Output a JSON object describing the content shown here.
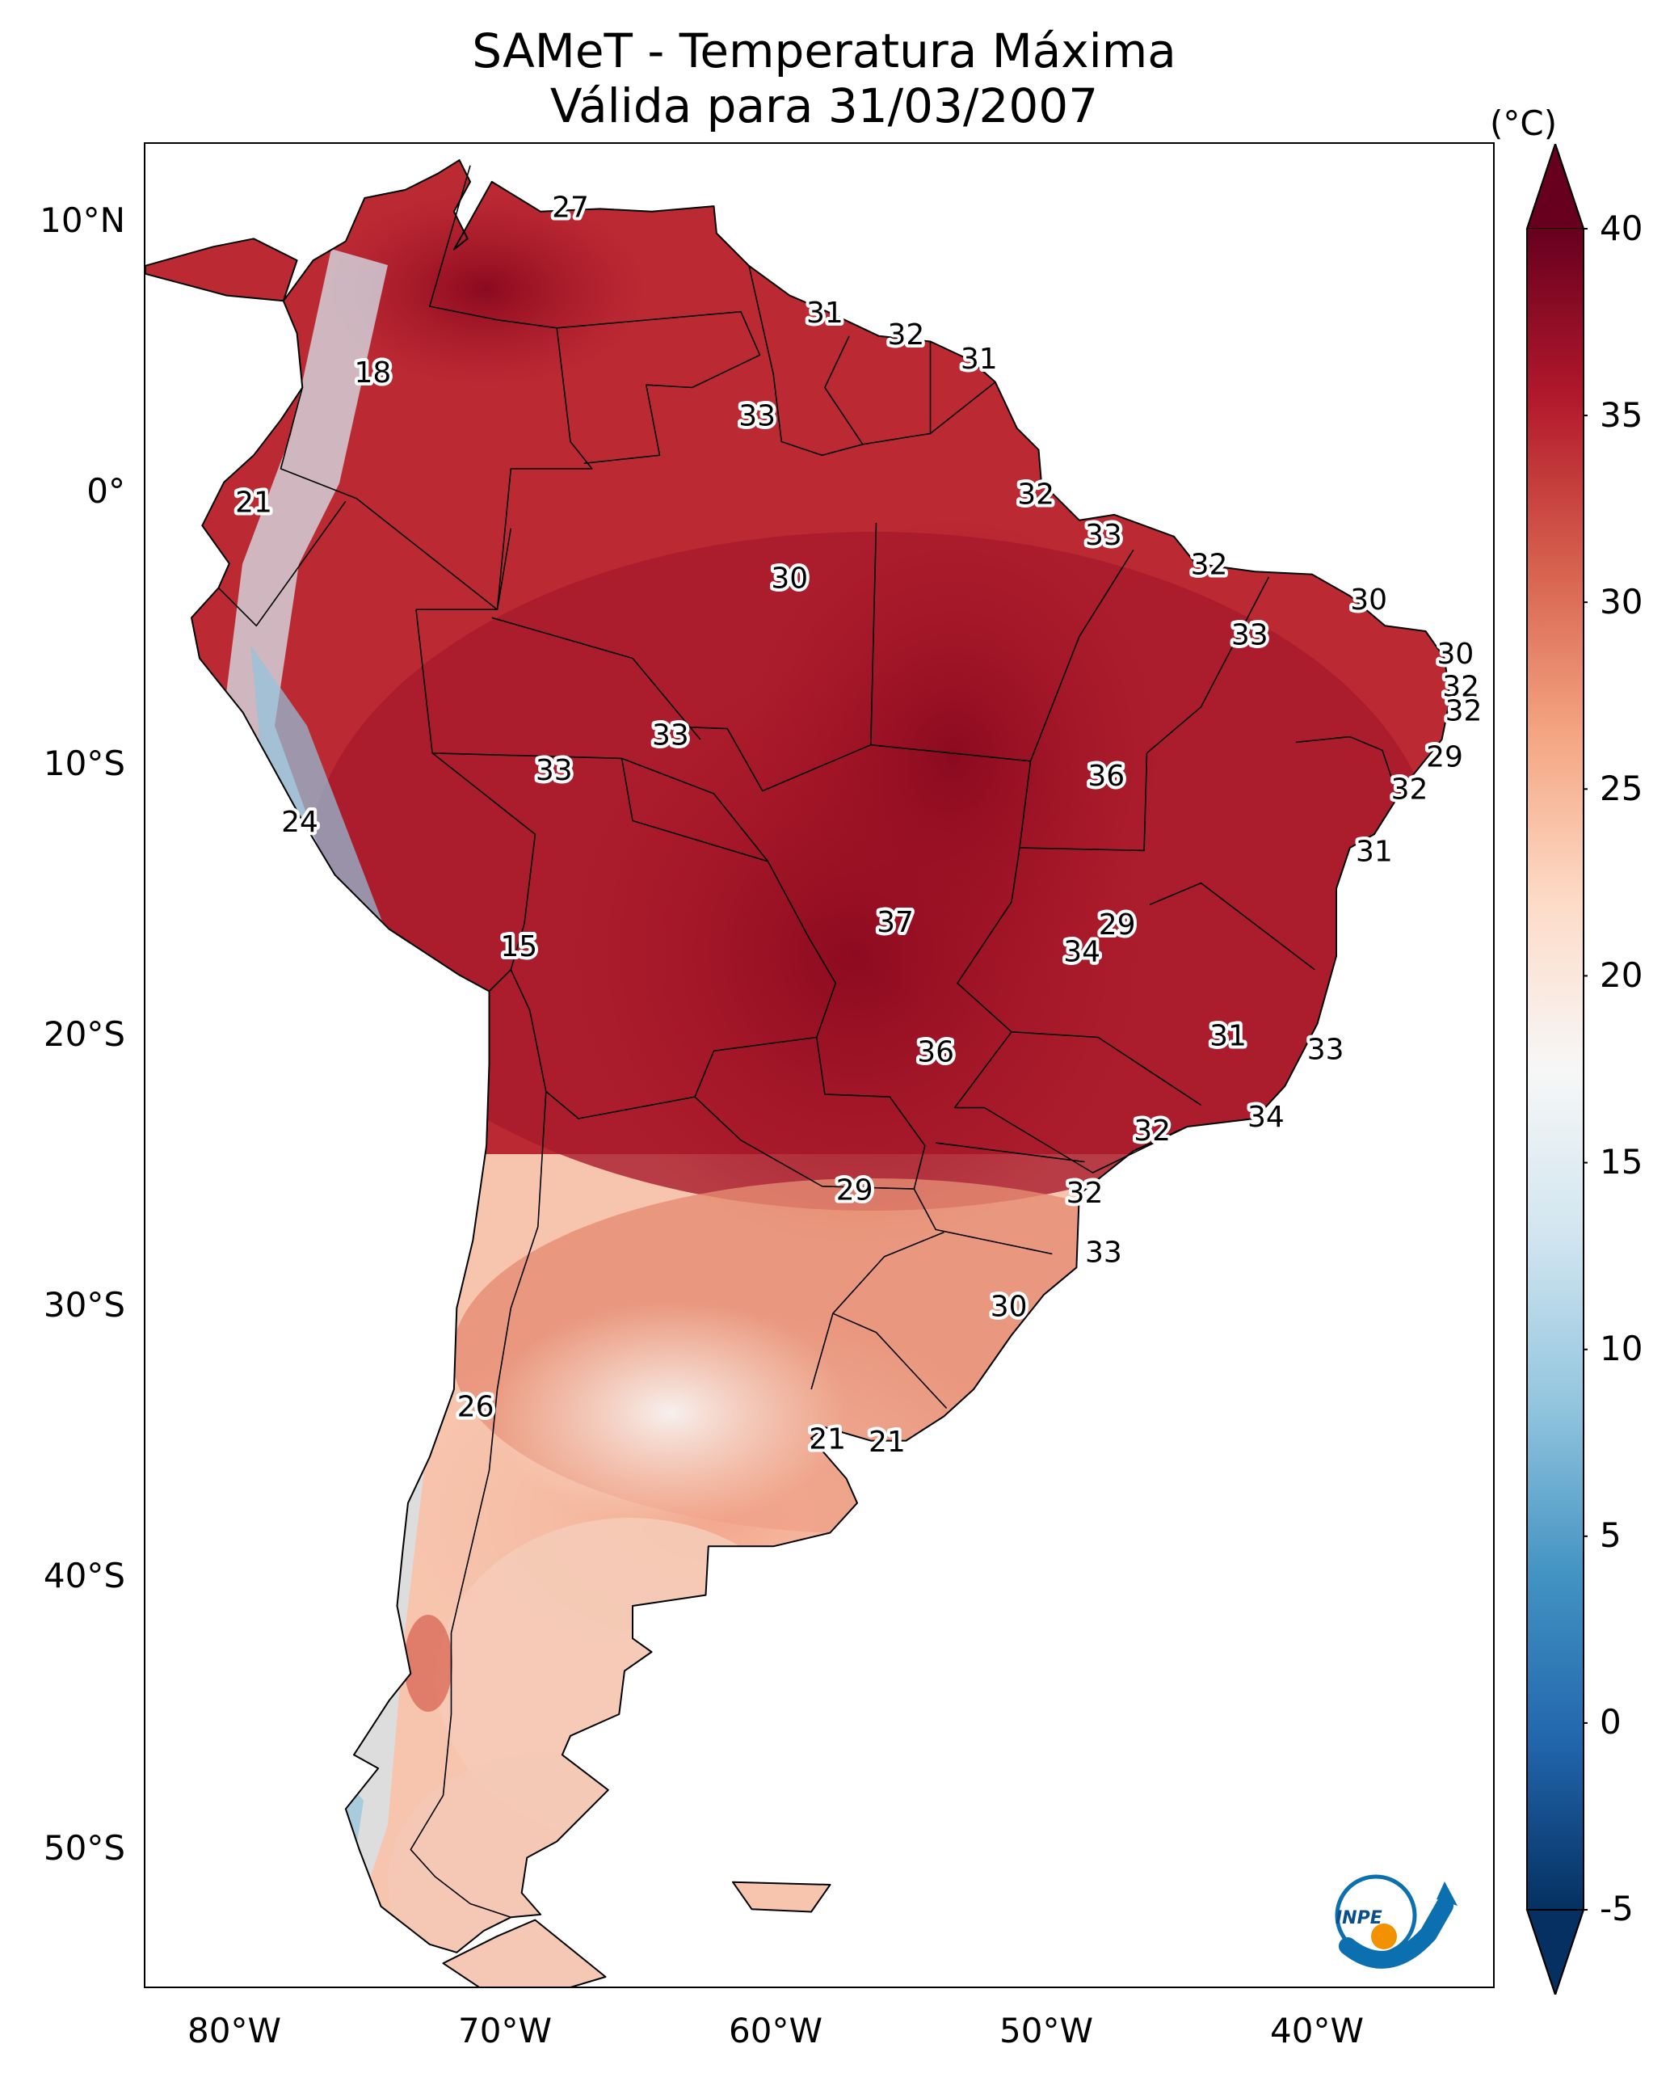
{
  "title_line1": "SAMeT - Temperatura Máxima",
  "title_line2": "Válida para 31/03/2007",
  "lat_ticks": [
    "10°N",
    "0°",
    "10°S",
    "20°S",
    "30°S",
    "40°S",
    "50°S"
  ],
  "lon_ticks": [
    "80°W",
    "70°W",
    "60°W",
    "50°W",
    "40°W"
  ],
  "colorbar": {
    "unit": "(°C)",
    "ticks": [
      "40",
      "35",
      "30",
      "25",
      "20",
      "15",
      "10",
      "5",
      "0",
      "-5"
    ],
    "range": [
      -5,
      40
    ],
    "colors": [
      "#053061",
      "#2166ac",
      "#4393c3",
      "#92c5de",
      "#d1e5f0",
      "#f7f7f7",
      "#fddbc7",
      "#f4a582",
      "#d6604d",
      "#b2182b",
      "#67001f"
    ]
  },
  "contour_labels": [
    {
      "text": "27",
      "lon": -67.3,
      "lat": 10.6
    },
    {
      "text": "18",
      "lon": -74.6,
      "lat": 4.5
    },
    {
      "text": "31",
      "lon": -57.9,
      "lat": 6.7
    },
    {
      "text": "32",
      "lon": -54.9,
      "lat": 5.9
    },
    {
      "text": "31",
      "lon": -52.2,
      "lat": 5.0
    },
    {
      "text": "33",
      "lon": -60.4,
      "lat": 2.9
    },
    {
      "text": "21",
      "lon": -79.0,
      "lat": -0.3
    },
    {
      "text": "32",
      "lon": -50.1,
      "lat": 0.0
    },
    {
      "text": "33",
      "lon": -47.6,
      "lat": -1.5
    },
    {
      "text": "30",
      "lon": -59.2,
      "lat": -3.1
    },
    {
      "text": "32",
      "lon": -43.7,
      "lat": -2.6
    },
    {
      "text": "30",
      "lon": -37.8,
      "lat": -3.9
    },
    {
      "text": "33",
      "lon": -42.2,
      "lat": -5.2
    },
    {
      "text": "30",
      "lon": -34.6,
      "lat": -5.9
    },
    {
      "text": "32",
      "lon": -34.4,
      "lat": -7.1
    },
    {
      "text": "32",
      "lon": -34.3,
      "lat": -8.0
    },
    {
      "text": "33",
      "lon": -63.6,
      "lat": -8.9
    },
    {
      "text": "33",
      "lon": -67.9,
      "lat": -10.2
    },
    {
      "text": "36",
      "lon": -47.5,
      "lat": -10.4
    },
    {
      "text": "29",
      "lon": -35.0,
      "lat": -9.7
    },
    {
      "text": "32",
      "lon": -36.3,
      "lat": -10.9
    },
    {
      "text": "24",
      "lon": -77.3,
      "lat": -12.1
    },
    {
      "text": "31",
      "lon": -37.6,
      "lat": -13.2
    },
    {
      "text": "37",
      "lon": -55.3,
      "lat": -15.8
    },
    {
      "text": "29",
      "lon": -47.1,
      "lat": -15.9
    },
    {
      "text": "34",
      "lon": -48.4,
      "lat": -16.9
    },
    {
      "text": "15",
      "lon": -69.2,
      "lat": -16.7
    },
    {
      "text": "31",
      "lon": -43.0,
      "lat": -20.0
    },
    {
      "text": "33",
      "lon": -39.4,
      "lat": -20.5
    },
    {
      "text": "36",
      "lon": -53.8,
      "lat": -20.6
    },
    {
      "text": "34",
      "lon": -41.6,
      "lat": -23.0
    },
    {
      "text": "32",
      "lon": -45.8,
      "lat": -23.5
    },
    {
      "text": "29",
      "lon": -56.8,
      "lat": -25.7
    },
    {
      "text": "32",
      "lon": -48.3,
      "lat": -25.8
    },
    {
      "text": "33",
      "lon": -47.6,
      "lat": -28.0
    },
    {
      "text": "30",
      "lon": -51.1,
      "lat": -30.0
    },
    {
      "text": "26",
      "lon": -70.8,
      "lat": -33.7
    },
    {
      "text": "21",
      "lon": -57.8,
      "lat": -34.9
    },
    {
      "text": "21",
      "lon": -55.6,
      "lat": -35.0
    }
  ],
  "logo": {
    "text": "INPE"
  }
}
